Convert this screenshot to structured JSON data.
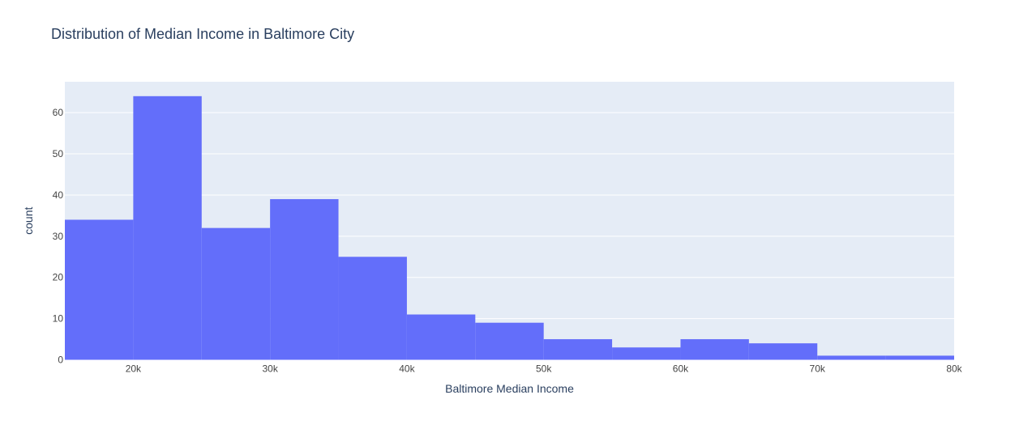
{
  "chart_data": {
    "type": "bar",
    "title": "Distribution of Median Income in Baltimore City",
    "xlabel": "Baltimore Median Income",
    "ylabel": "count",
    "bin_edges": [
      15000,
      20000,
      25000,
      30000,
      35000,
      40000,
      45000,
      50000,
      55000,
      60000,
      65000,
      70000,
      75000,
      80000
    ],
    "values": [
      34,
      64,
      32,
      39,
      25,
      11,
      9,
      5,
      3,
      5,
      4,
      1,
      1
    ],
    "xlim": [
      15000,
      80000
    ],
    "ylim": [
      0,
      67.5
    ],
    "x_ticks": [
      {
        "value": 20000,
        "label": "20k"
      },
      {
        "value": 30000,
        "label": "30k"
      },
      {
        "value": 40000,
        "label": "40k"
      },
      {
        "value": 50000,
        "label": "50k"
      },
      {
        "value": 60000,
        "label": "60k"
      },
      {
        "value": 70000,
        "label": "70k"
      },
      {
        "value": 80000,
        "label": "80k"
      }
    ],
    "y_ticks": [
      {
        "value": 0,
        "label": "0"
      },
      {
        "value": 10,
        "label": "10"
      },
      {
        "value": 20,
        "label": "20"
      },
      {
        "value": 30,
        "label": "30"
      },
      {
        "value": 40,
        "label": "40"
      },
      {
        "value": 50,
        "label": "50"
      },
      {
        "value": 60,
        "label": "60"
      }
    ],
    "grid": true,
    "colors": {
      "bar": "#636efa",
      "plot_background": "#e5ecf6",
      "grid": "#ffffff",
      "text": "#2a3f5f",
      "tick_text": "#444444"
    }
  }
}
